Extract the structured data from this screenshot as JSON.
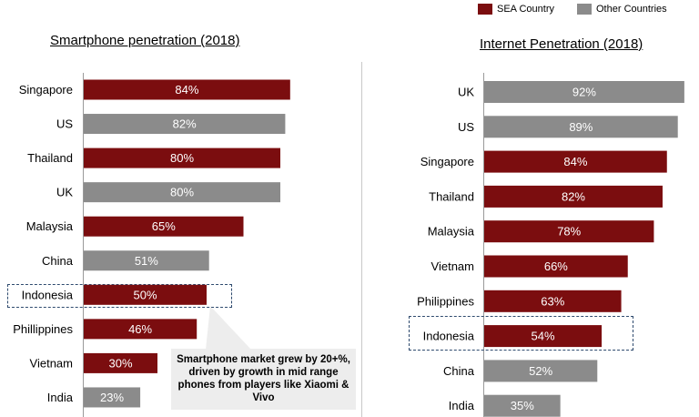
{
  "legend": {
    "sea_label": "SEA Country",
    "other_label": "Other Countries"
  },
  "colors": {
    "sea": "#7b0d0f",
    "other": "#8b8b8b"
  },
  "callout_text": "Smartphone market grew by 20+%, driven by growth in mid range phones from players like Xiaomi & Vivo",
  "chart_data": [
    {
      "type": "bar",
      "orientation": "horizontal",
      "title": "Smartphone penetration (2018)",
      "categories": [
        "Singapore",
        "US",
        "Thailand",
        "UK",
        "Malaysia",
        "China",
        "Indonesia",
        "Phillippines",
        "Vietnam",
        "India"
      ],
      "values": [
        84,
        82,
        80,
        80,
        65,
        51,
        50,
        46,
        30,
        23
      ],
      "value_labels": [
        "84%",
        "82%",
        "80%",
        "80%",
        "65%",
        "51%",
        "50%",
        "46%",
        "30%",
        "23%"
      ],
      "groups": [
        "sea",
        "other",
        "sea",
        "other",
        "sea",
        "other",
        "sea",
        "sea",
        "sea",
        "other"
      ],
      "highlighted": "Indonesia",
      "unit": "%"
    },
    {
      "type": "bar",
      "orientation": "horizontal",
      "title": "Internet Penetration (2018)",
      "categories": [
        "UK",
        "US",
        "Singapore",
        "Thailand",
        "Malaysia",
        "Vietnam",
        "Philippines",
        "Indonesia",
        "China",
        "India"
      ],
      "values": [
        92,
        89,
        84,
        82,
        78,
        66,
        63,
        54,
        52,
        35
      ],
      "value_labels": [
        "92%",
        "89%",
        "84%",
        "82%",
        "78%",
        "66%",
        "63%",
        "54%",
        "52%",
        "35%"
      ],
      "groups": [
        "other",
        "other",
        "sea",
        "sea",
        "sea",
        "sea",
        "sea",
        "sea",
        "other",
        "other"
      ],
      "highlighted": "Indonesia",
      "unit": "%"
    }
  ]
}
